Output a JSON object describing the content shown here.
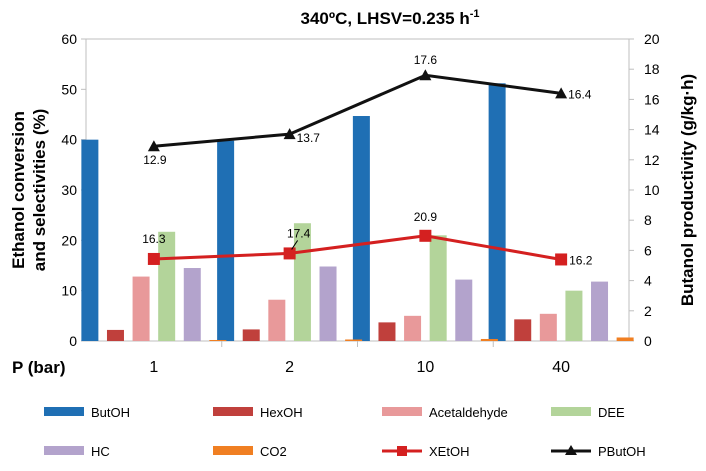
{
  "chart_data": {
    "type": "bar+line",
    "title_main": "340ºC, LHSV=0.235 h",
    "title_sup": "-1",
    "x_label": "P (bar)",
    "categories": [
      "1",
      "2",
      "10",
      "40"
    ],
    "y_left": {
      "label_line1": "Ethanol conversion",
      "label_line2": "and selectivities (%)",
      "min": 0,
      "max": 60,
      "step": 10,
      "ticks": [
        "0",
        "10",
        "20",
        "30",
        "40",
        "50",
        "60"
      ]
    },
    "y_right": {
      "label": "Butanol productivity (g/kg·h)",
      "min": 0,
      "max": 20,
      "step": 2,
      "ticks": [
        "0",
        "2",
        "4",
        "6",
        "8",
        "10",
        "12",
        "14",
        "16",
        "18",
        "20"
      ]
    },
    "bar_series": [
      {
        "name": "ButOH",
        "color": "#1f6fb4",
        "values": [
          40.0,
          39.8,
          44.7,
          51.2
        ]
      },
      {
        "name": "HexOH",
        "color": "#c0403c",
        "values": [
          2.2,
          2.3,
          3.7,
          4.3
        ]
      },
      {
        "name": "Acetaldehyde",
        "color": "#e8999a",
        "values": [
          12.8,
          8.2,
          5.0,
          5.4
        ]
      },
      {
        "name": "DEE",
        "color": "#b3d49a",
        "values": [
          21.7,
          23.4,
          21.0,
          10.0
        ]
      },
      {
        "name": "HC",
        "color": "#b3a3cc",
        "values": [
          14.5,
          14.8,
          12.2,
          11.8
        ]
      },
      {
        "name": "CO2",
        "color": "#f07f22",
        "values": [
          0.2,
          0.3,
          0.4,
          0.7
        ]
      }
    ],
    "line_series": [
      {
        "name": "XEtOH",
        "axis": "left",
        "color": "#d42020",
        "marker": "square",
        "values": [
          16.3,
          17.4,
          20.9,
          16.2
        ],
        "labels": [
          "16.3",
          "17.4",
          "20.9",
          "16.2"
        ]
      },
      {
        "name": "PButOH",
        "axis": "right",
        "color": "#111111",
        "marker": "triangle",
        "values": [
          12.9,
          13.7,
          17.6,
          16.4
        ],
        "labels": [
          "12.9",
          "13.7",
          "17.6",
          "16.4"
        ]
      }
    ],
    "legend": [
      "ButOH",
      "HexOH",
      "Acetaldehyde",
      "DEE",
      "HC",
      "CO2",
      "XEtOH",
      "PButOH"
    ],
    "legend_position": "bottom",
    "gridlines": false
  }
}
